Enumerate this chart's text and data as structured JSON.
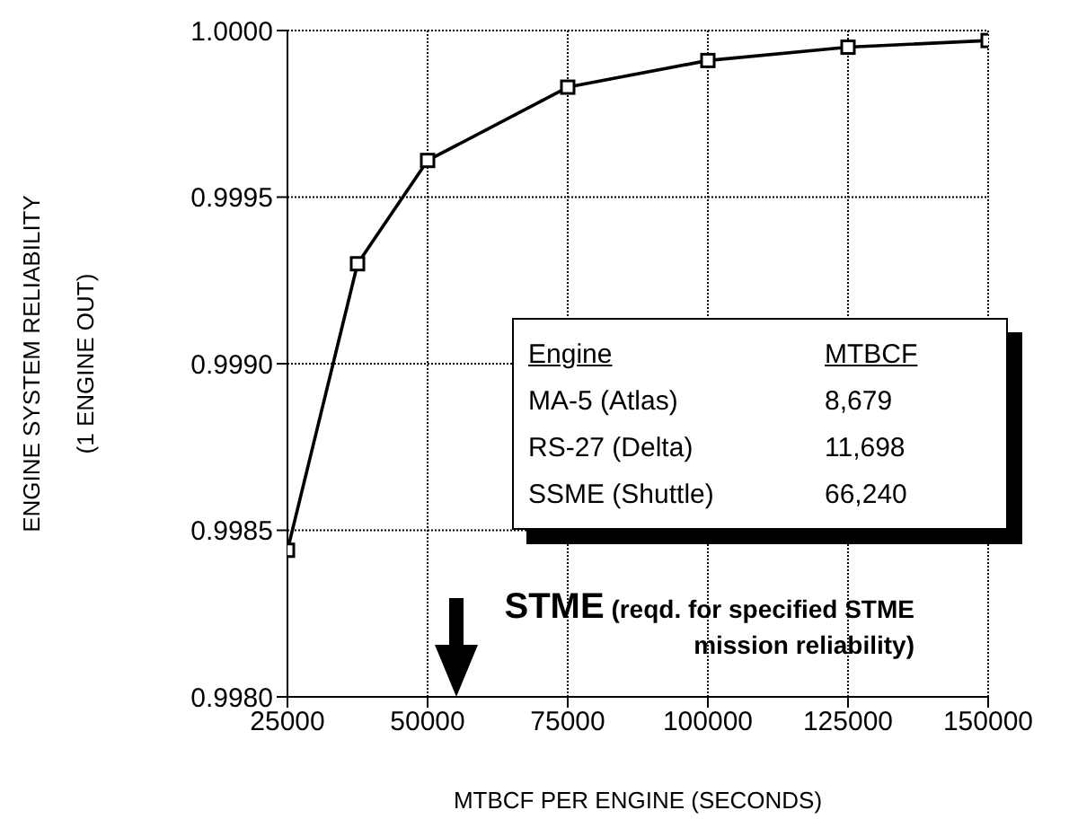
{
  "chart_data": {
    "type": "line",
    "xlabel": "MTBCF PER ENGINE (SECONDS)",
    "ylabel": "ENGINE SYSTEM RELIABILITY\n(1 ENGINE OUT)",
    "x": [
      25000,
      37500,
      50000,
      75000,
      100000,
      125000,
      150000
    ],
    "series": [
      {
        "color": "#000000",
        "values": [
          0.99844,
          0.9993,
          0.99961,
          0.99983,
          0.99991,
          0.99995,
          0.99997
        ]
      }
    ],
    "xlim": [
      25000,
      150000
    ],
    "xticks": [
      25000,
      50000,
      75000,
      100000,
      125000,
      150000
    ],
    "ylim": [
      0.998,
      1.0
    ],
    "yticks": [
      {
        "value": 0.998,
        "label": "0.9980"
      },
      {
        "value": 0.9985,
        "label": "0.9985"
      },
      {
        "value": 0.999,
        "label": "0.9990"
      },
      {
        "value": 0.9995,
        "label": "0.9995"
      },
      {
        "value": 1.0,
        "label": "1.0000"
      }
    ],
    "grid": true,
    "marker": "square",
    "line_style": "solid",
    "annotations": [
      "Engine",
      "MTBCF",
      "MA-5 (Atlas)",
      "8,679",
      "RS-27 (Delta)",
      "11,698",
      "SSME (Shuttle)",
      "66,240",
      "STME (reqd. for specified STME mission reliability)"
    ]
  }
}
